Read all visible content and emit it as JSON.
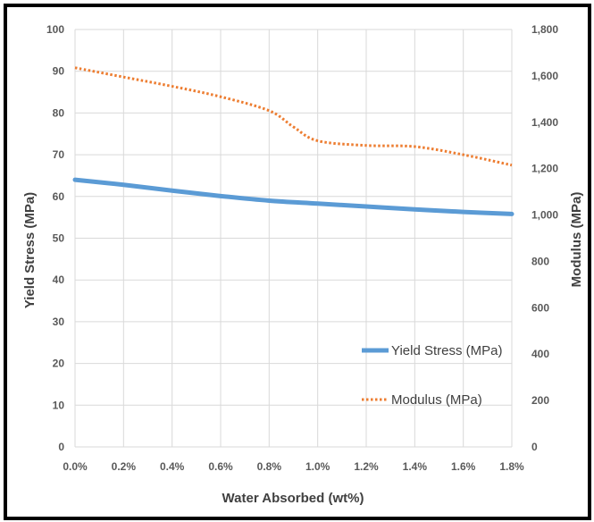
{
  "chart_data": {
    "type": "line",
    "x": [
      0.0,
      0.2,
      0.4,
      0.6,
      0.8,
      0.9,
      1.0,
      1.2,
      1.4,
      1.6,
      1.8
    ],
    "x_tick_labels": [
      "0.0%",
      "0.2%",
      "0.4%",
      "0.6%",
      "0.8%",
      "1.0%",
      "1.2%",
      "1.4%",
      "1.6%",
      "1.8%"
    ],
    "xlabel": "Water Absorbed (wt%)",
    "xlim": [
      0,
      1.8
    ],
    "ylabel": "Yield Stress (MPa)",
    "ylim": [
      0,
      100
    ],
    "y_tick_labels": [
      "0",
      "10",
      "20",
      "30",
      "40",
      "50",
      "60",
      "70",
      "80",
      "90",
      "100"
    ],
    "y2label": "Modulus (MPa)",
    "y2lim": [
      0,
      1800
    ],
    "y2_tick_labels": [
      "0",
      "200",
      "400",
      "600",
      "800",
      "1,000",
      "1,200",
      "1,400",
      "1,600",
      "1,800"
    ],
    "grid": true,
    "legend_position": "bottom-right",
    "series": [
      {
        "name": "Yield Stress (MPa)",
        "axis": "left",
        "color": "#5b9bd5",
        "style": "solid",
        "x": [
          0.0,
          0.2,
          0.4,
          0.6,
          0.8,
          1.0,
          1.2,
          1.4,
          1.6,
          1.8
        ],
        "values": [
          64.0,
          62.8,
          61.4,
          60.1,
          59.0,
          58.3,
          57.6,
          56.9,
          56.3,
          55.8
        ]
      },
      {
        "name": "Modulus (MPa)",
        "axis": "right",
        "color": "#ed7d31",
        "style": "dotted",
        "x": [
          0.0,
          0.2,
          0.4,
          0.6,
          0.8,
          0.9,
          1.0,
          1.2,
          1.4,
          1.6,
          1.8
        ],
        "values": [
          1635,
          1595,
          1555,
          1510,
          1450,
          1380,
          1320,
          1300,
          1295,
          1260,
          1215
        ]
      }
    ]
  }
}
